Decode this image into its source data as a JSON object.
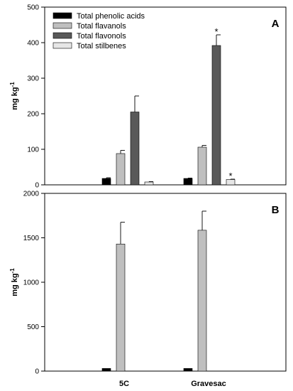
{
  "chart_data": [
    {
      "type": "bar",
      "panel_label": "A",
      "ylabel": "mg kg",
      "ylabel_sup": "-1",
      "ylim": [
        0,
        500
      ],
      "yticks": [
        0,
        100,
        200,
        300,
        400,
        500
      ],
      "categories": [
        "5C",
        "Gravesac"
      ],
      "series": [
        {
          "name": "Total phenolic acids",
          "color": "#000000",
          "values": [
            18,
            18
          ],
          "errors": [
            2,
            1
          ],
          "marks": [
            "",
            ""
          ]
        },
        {
          "name": "Total flavanols",
          "color": "#bfbfbf",
          "values": [
            88,
            106
          ],
          "errors": [
            9,
            5
          ],
          "marks": [
            "",
            ""
          ]
        },
        {
          "name": "Total flavonols",
          "color": "#595959",
          "values": [
            205,
            392
          ],
          "errors": [
            45,
            30
          ],
          "marks": [
            "",
            "*"
          ]
        },
        {
          "name": "Total stilbenes",
          "color": "#e6e6e6",
          "values": [
            8,
            15
          ],
          "errors": [
            1,
            1
          ],
          "marks": [
            "",
            "*"
          ]
        }
      ],
      "legend": "top-left",
      "grid": false
    },
    {
      "type": "bar",
      "panel_label": "B",
      "ylabel": "mg kg",
      "ylabel_sup": "-1",
      "ylim": [
        0,
        2000
      ],
      "yticks": [
        0,
        500,
        1000,
        1500,
        2000
      ],
      "categories": [
        "5C",
        "Gravesac"
      ],
      "series": [
        {
          "name": "Total phenolic acids",
          "color": "#000000",
          "values": [
            30,
            30
          ],
          "errors": [
            0,
            0
          ]
        },
        {
          "name": "Total flavanols",
          "color": "#bfbfbf",
          "values": [
            1430,
            1585
          ],
          "errors": [
            245,
            215
          ]
        }
      ],
      "grid": false
    }
  ]
}
